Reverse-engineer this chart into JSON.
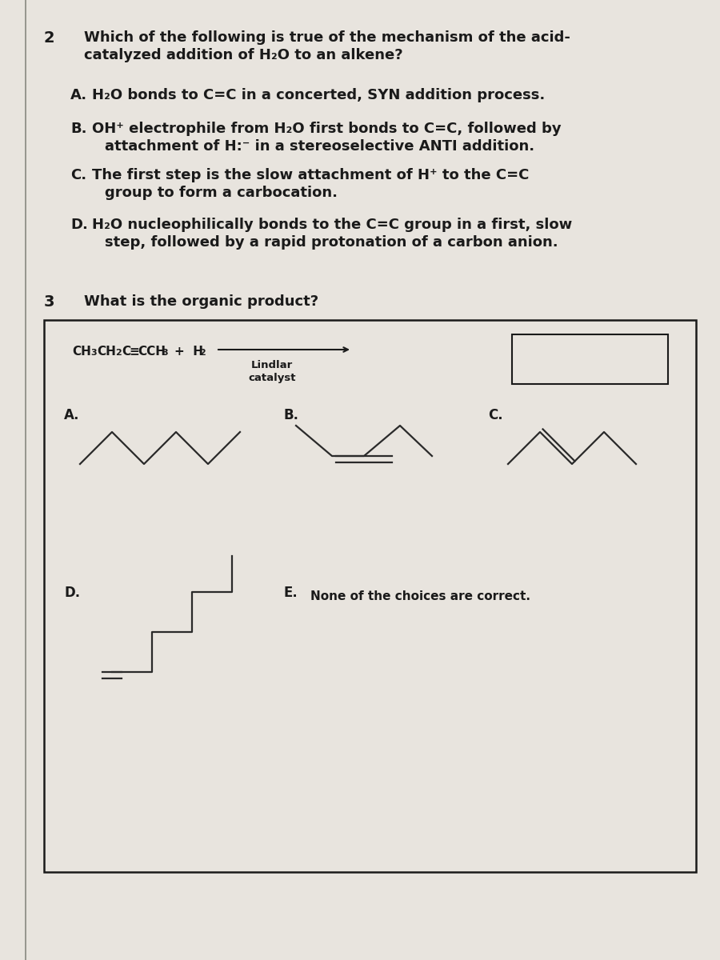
{
  "page_bg": "#d4cec6",
  "content_bg": "#e8e4de",
  "q2_number": "2",
  "q2_question_line1": "Which of the following is true of the mechanism of the acid-",
  "q2_question_line2": "catalyzed addition of H₂O to an alkene?",
  "q2_A_text": "H₂O bonds to C=C in a concerted, SYN addition process.",
  "q2_B_line1": "OH⁺ electrophile from H₂O first bonds to C=C, followed by",
  "q2_B_line2": "attachment of H:⁻ in a stereoselective ANTI addition.",
  "q2_C_line1": "The first step is the slow attachment of H⁺ to the C=C",
  "q2_C_line2": "group to form a carbocation.",
  "q2_D_line1": "H₂O nucleophilically bonds to the C=C group in a first, slow",
  "q2_D_line2": "step, followed by a rapid protonation of a carbon anion.",
  "q3_number": "3",
  "q3_question": "What is the organic product?",
  "catalyst_line1": "Lindlar",
  "catalyst_line2": "catalyst",
  "answer_E_text": "None of the choices are correct.",
  "text_color": "#1a1a1a",
  "struct_color": "#2a2a2a",
  "box_color": "#e8e4de",
  "border_color": "#1a1a1a"
}
